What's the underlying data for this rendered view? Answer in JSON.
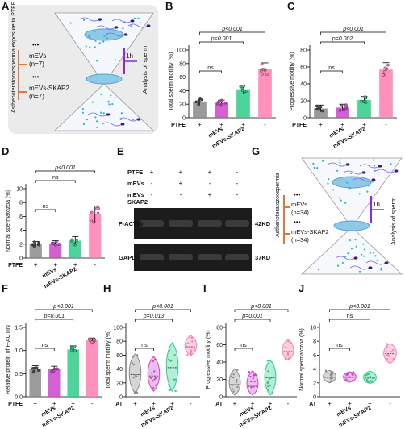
{
  "panel_labels": [
    "A",
    "B",
    "C",
    "D",
    "E",
    "F",
    "G",
    "H",
    "I",
    "J"
  ],
  "colors": {
    "ptfe": "#8a8a8a",
    "mevs": "#cc44cc",
    "skap2": "#2ecc8a",
    "ctrl": "#ff7fb0",
    "orange": "#e8743b",
    "purple": "#8a2be2",
    "cyan_dots": "#28b6d2"
  },
  "panelA": {
    "vertical_label": "Asthenoteratozoospermia exposure to PTFE",
    "groups": [
      {
        "label": "mEVs",
        "n": "(n=7)"
      },
      {
        "label": "mEVs-SKAP2",
        "n": "(n=7)"
      }
    ],
    "time": "1h",
    "analysis": "Analysis of sperm"
  },
  "panelG": {
    "vertical_label": "Asthenoteratozoospermia",
    "groups": [
      {
        "label": "mEVs",
        "n": "(n=34)"
      },
      {
        "label": "mEVs-SKAP2",
        "n": "(n=34)"
      }
    ],
    "time": "1h",
    "analysis": "Analysis of sperm"
  },
  "panelE": {
    "rows": [
      "PTFE",
      "mEVs",
      "mEVs SKAP2"
    ],
    "signs": [
      [
        "+",
        "+",
        "+",
        "-"
      ],
      [
        "-",
        "+",
        "-",
        "-"
      ],
      [
        "-",
        "-",
        "+",
        "-"
      ]
    ],
    "bands": [
      {
        "label": "F-ACTIN",
        "kd": "42KD"
      },
      {
        "label": "GAPDH",
        "kd": "37KD"
      }
    ]
  },
  "chart_data": [
    {
      "panel": "B",
      "type": "bar",
      "ylabel": "Total sperm motility (%)",
      "ylim": [
        0,
        100
      ],
      "yticks": [
        "0",
        "20",
        "40",
        "60",
        "80",
        "100"
      ],
      "categories": [
        "",
        "mEVs",
        "mEVs-SKAP2",
        ""
      ],
      "row_label": "PTFE",
      "signs": [
        "+",
        "+",
        "+",
        "-"
      ],
      "values": [
        24,
        22,
        42,
        72
      ],
      "errors": [
        5,
        4,
        6,
        9
      ],
      "significance": [
        {
          "from": 0,
          "to": 1,
          "text": "ns"
        },
        {
          "from": 0,
          "to": 2,
          "text": "p<0.001"
        },
        {
          "from": 0,
          "to": 3,
          "text": "p<0.001"
        }
      ]
    },
    {
      "panel": "C",
      "type": "bar",
      "ylabel": "Progressive motility (%)",
      "ylim": [
        0,
        80
      ],
      "yticks": [
        "0",
        "20",
        "40",
        "60",
        "80"
      ],
      "categories": [
        "",
        "mEVs",
        "mEVs-SKAP2",
        ""
      ],
      "row_label": "PTFE",
      "signs": [
        "+",
        "+",
        "+",
        "-"
      ],
      "values": [
        11,
        12,
        21,
        57
      ],
      "errors": [
        4,
        4,
        4,
        8
      ],
      "significance": [
        {
          "from": 0,
          "to": 1,
          "text": "ns"
        },
        {
          "from": 0,
          "to": 2,
          "text": "p=0.002"
        },
        {
          "from": 0,
          "to": 3,
          "text": "p<0.001"
        }
      ]
    },
    {
      "panel": "D",
      "type": "bar",
      "ylabel": "Normal spermatozoa (%)",
      "ylim": [
        0,
        10
      ],
      "yticks": [
        "0",
        "2",
        "4",
        "6",
        "8",
        "10"
      ],
      "categories": [
        "",
        "mEVs",
        "mEVs-SKAP2",
        ""
      ],
      "row_label": "PTFE",
      "signs": [
        "+",
        "+",
        "+",
        "-"
      ],
      "values": [
        2.0,
        2.1,
        2.5,
        6.3
      ],
      "errors": [
        0.4,
        0.4,
        0.6,
        1.2
      ],
      "significance": [
        {
          "from": 0,
          "to": 1,
          "text": "ns"
        },
        {
          "from": 0,
          "to": 2,
          "text": "ns"
        },
        {
          "from": 0,
          "to": 3,
          "text": "p<0.001"
        }
      ]
    },
    {
      "panel": "F",
      "type": "bar",
      "ylabel": "Relative protein of F-ACTIN",
      "ylim": [
        0,
        1.5
      ],
      "yticks": [
        "0.0",
        "0.5",
        "1.0",
        "1.5"
      ],
      "categories": [
        "",
        "mEVs",
        "mEVs-SKAP2",
        ""
      ],
      "row_label": "PTFE",
      "signs": [
        "+",
        "+",
        "+",
        "-"
      ],
      "values": [
        0.6,
        0.6,
        1.02,
        1.22
      ],
      "errors": [
        0.07,
        0.06,
        0.08,
        0.05
      ],
      "significance": [
        {
          "from": 0,
          "to": 1,
          "text": "ns"
        },
        {
          "from": 0,
          "to": 2,
          "text": "p<0.001"
        },
        {
          "from": 0,
          "to": 3,
          "text": "p<0.001"
        }
      ]
    },
    {
      "panel": "H",
      "type": "violin",
      "ylabel": "Total sperm motility (%)",
      "ylim": [
        0,
        100
      ],
      "yticks": [
        "0",
        "20",
        "40",
        "60",
        "80",
        "100"
      ],
      "categories": [
        "",
        "mEVs",
        "mEVs-SKAP2",
        ""
      ],
      "row_label": "AT",
      "signs": [
        "+",
        "+",
        "+",
        "-"
      ],
      "medians": [
        32,
        30,
        42,
        72
      ],
      "ranges": [
        [
          5,
          62
        ],
        [
          8,
          58
        ],
        [
          8,
          78
        ],
        [
          60,
          88
        ]
      ],
      "significance": [
        {
          "from": 0,
          "to": 1,
          "text": "ns"
        },
        {
          "from": 0,
          "to": 2,
          "text": "p=0.013"
        },
        {
          "from": 0,
          "to": 3,
          "text": "p<0.001"
        }
      ]
    },
    {
      "panel": "I",
      "type": "violin",
      "ylabel": "Progressive motility (%)",
      "ylim": [
        0,
        80
      ],
      "yticks": [
        "0",
        "20",
        "40",
        "60",
        "80"
      ],
      "categories": [
        "",
        "mEVs",
        "mEVs-SKAP2",
        ""
      ],
      "row_label": "AT",
      "signs": [
        "+",
        "+",
        "+",
        "-"
      ],
      "medians": [
        14,
        12,
        22,
        52
      ],
      "ranges": [
        [
          2,
          32
        ],
        [
          2,
          30
        ],
        [
          2,
          42
        ],
        [
          42,
          66
        ]
      ],
      "significance": [
        {
          "from": 0,
          "to": 1,
          "text": "ns"
        },
        {
          "from": 0,
          "to": 2,
          "text": "p=0.001"
        },
        {
          "from": 0,
          "to": 3,
          "text": "p<0.001"
        }
      ]
    },
    {
      "panel": "J",
      "type": "violin",
      "ylabel": "Normal spermatozoa (%)",
      "ylim": [
        0,
        10
      ],
      "yticks": [
        "0",
        "2",
        "4",
        "6",
        "8",
        "10"
      ],
      "categories": [
        "",
        "mEVs",
        "mEVs-SKAP2",
        ""
      ],
      "row_label": "AT",
      "signs": [
        "+",
        "+",
        "+",
        "-"
      ],
      "medians": [
        2.8,
        2.8,
        2.7,
        6.2
      ],
      "ranges": [
        [
          2.0,
          3.8
        ],
        [
          2.1,
          3.6
        ],
        [
          1.9,
          3.7
        ],
        [
          4.8,
          7.7
        ]
      ],
      "significance": [
        {
          "from": 0,
          "to": 1,
          "text": "ns"
        },
        {
          "from": 0,
          "to": 2,
          "text": "ns"
        },
        {
          "from": 0,
          "to": 3,
          "text": "p<0.001"
        }
      ]
    }
  ]
}
